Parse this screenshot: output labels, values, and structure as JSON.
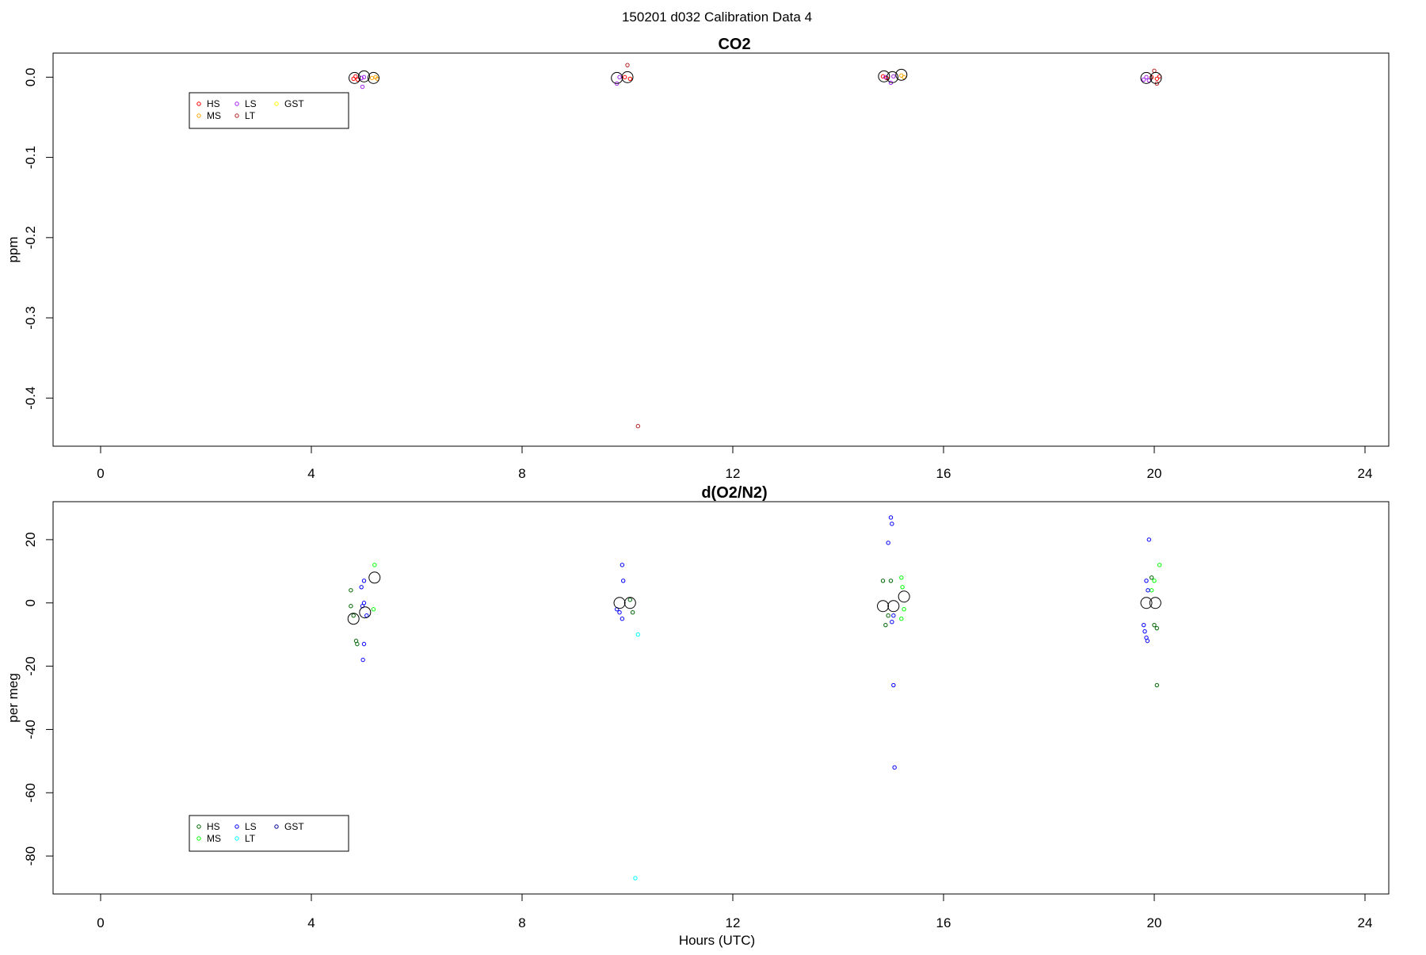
{
  "page_title": "150201   d032   Calibration Data 4",
  "chart_data": [
    {
      "type": "scatter",
      "title": "CO2",
      "xlabel": "",
      "ylabel": "ppm",
      "xlim": [
        0,
        24
      ],
      "ylim": [
        -0.46,
        0.03
      ],
      "xticks": [
        0,
        4,
        8,
        12,
        16,
        20,
        24
      ],
      "xtick_labels": [
        "0",
        "4",
        "8",
        "12",
        "16",
        "20",
        "24"
      ],
      "yticks": [
        0.0,
        -0.1,
        -0.2,
        -0.3,
        -0.4
      ],
      "ytick_labels": [
        "0.0",
        "-0.1",
        "-0.2",
        "-0.3",
        "-0.4"
      ],
      "legend": {
        "position": "top-left",
        "entries": [
          {
            "name": "HS",
            "color": "#ff0000"
          },
          {
            "name": "MS",
            "color": "#ffa500"
          },
          {
            "name": "LS",
            "color": "#a020f0"
          },
          {
            "name": "LT",
            "color": "#b22222"
          },
          {
            "name": "GST",
            "color": "#ffff00"
          }
        ]
      },
      "series": [
        {
          "name": "HS",
          "color": "#ff0000",
          "points": [
            [
              4.8,
              -0.002
            ],
            [
              4.84,
              0.001
            ],
            [
              4.88,
              -0.003
            ],
            [
              9.95,
              0.0
            ],
            [
              10.05,
              -0.002
            ],
            [
              14.85,
              0.001
            ],
            [
              14.92,
              -0.001
            ],
            [
              19.95,
              0.0
            ],
            [
              20.05,
              -0.002
            ],
            [
              20.1,
              0.001
            ]
          ]
        },
        {
          "name": "MS",
          "color": "#ffa500",
          "points": [
            [
              5.15,
              -0.001
            ],
            [
              5.22,
              0.0
            ],
            [
              5.25,
              -0.002
            ],
            [
              15.2,
              0.002
            ],
            [
              15.25,
              0.0
            ]
          ]
        },
        {
          "name": "LS",
          "color": "#a020f0",
          "points": [
            [
              4.95,
              -0.001
            ],
            [
              5.0,
              0.0
            ],
            [
              4.97,
              -0.012
            ],
            [
              9.8,
              -0.008
            ],
            [
              9.85,
              0.0
            ],
            [
              14.9,
              0.0
            ],
            [
              15.0,
              -0.007
            ],
            [
              15.05,
              0.001
            ],
            [
              19.8,
              -0.003
            ],
            [
              19.85,
              0.0
            ],
            [
              19.9,
              -0.004
            ]
          ]
        },
        {
          "name": "LT",
          "color": "#b22222",
          "points": [
            [
              10.0,
              0.015
            ],
            [
              10.2,
              -0.435
            ],
            [
              20.0,
              0.008
            ],
            [
              20.05,
              -0.008
            ]
          ]
        },
        {
          "name": "GST",
          "color": "#ffff00",
          "points": []
        },
        {
          "name": "means",
          "color": "#000000",
          "marker": "large-circle",
          "points": [
            [
              4.82,
              -0.001
            ],
            [
              5.0,
              0.001
            ],
            [
              5.18,
              -0.001
            ],
            [
              9.8,
              -0.001
            ],
            [
              10.0,
              0.0
            ],
            [
              14.87,
              0.001
            ],
            [
              15.03,
              0.0
            ],
            [
              15.2,
              0.003
            ],
            [
              19.85,
              -0.001
            ],
            [
              20.03,
              -0.001
            ]
          ]
        }
      ]
    },
    {
      "type": "scatter",
      "title": "d(O2/N2)",
      "xlabel": "Hours (UTC)",
      "ylabel": "per meg",
      "xlim": [
        0,
        24
      ],
      "ylim": [
        -92,
        32
      ],
      "xticks": [
        0,
        4,
        8,
        12,
        16,
        20,
        24
      ],
      "xtick_labels": [
        "0",
        "4",
        "8",
        "12",
        "16",
        "20",
        "24"
      ],
      "yticks": [
        20,
        0,
        -20,
        -40,
        -60,
        -80
      ],
      "ytick_labels": [
        "20",
        "0",
        "-20",
        "-40",
        "-60",
        "-80"
      ],
      "legend": {
        "position": "bottom-left",
        "entries": [
          {
            "name": "HS",
            "color": "#006400"
          },
          {
            "name": "MS",
            "color": "#00ff00"
          },
          {
            "name": "LS",
            "color": "#0000ff"
          },
          {
            "name": "LT",
            "color": "#00ffff"
          },
          {
            "name": "GST",
            "color": "#00008b"
          }
        ]
      },
      "series": [
        {
          "name": "HS",
          "color": "#006400",
          "points": [
            [
              4.75,
              4
            ],
            [
              4.75,
              -1
            ],
            [
              4.8,
              -4
            ],
            [
              4.85,
              -12
            ],
            [
              4.87,
              -13
            ],
            [
              10.05,
              1
            ],
            [
              10.1,
              -3
            ],
            [
              14.85,
              7
            ],
            [
              14.9,
              -7
            ],
            [
              14.95,
              -4
            ],
            [
              15.0,
              7
            ],
            [
              19.95,
              8
            ],
            [
              20.0,
              -7
            ],
            [
              20.05,
              -8
            ],
            [
              20.05,
              -26
            ]
          ]
        },
        {
          "name": "MS",
          "color": "#00ff00",
          "points": [
            [
              5.2,
              12
            ],
            [
              5.18,
              -2
            ],
            [
              15.2,
              8
            ],
            [
              15.22,
              5
            ],
            [
              15.25,
              -2
            ],
            [
              15.2,
              -5
            ],
            [
              20.1,
              12
            ],
            [
              20.0,
              7
            ],
            [
              19.95,
              4
            ]
          ]
        },
        {
          "name": "LS",
          "color": "#0000ff",
          "points": [
            [
              4.95,
              5
            ],
            [
              5.0,
              7
            ],
            [
              5.0,
              0
            ],
            [
              4.97,
              -1
            ],
            [
              5.05,
              -4
            ],
            [
              5.0,
              -13
            ],
            [
              4.98,
              -18
            ],
            [
              9.9,
              12
            ],
            [
              9.92,
              7
            ],
            [
              9.8,
              -2
            ],
            [
              9.85,
              -3
            ],
            [
              9.9,
              -5
            ],
            [
              15.0,
              27
            ],
            [
              15.02,
              25
            ],
            [
              14.95,
              19
            ],
            [
              15.05,
              -4
            ],
            [
              15.02,
              -6
            ],
            [
              15.05,
              -26
            ],
            [
              15.07,
              -52
            ],
            [
              19.9,
              20
            ],
            [
              19.85,
              7
            ],
            [
              19.88,
              4
            ],
            [
              19.8,
              -7
            ],
            [
              19.82,
              -9
            ],
            [
              19.85,
              -11
            ],
            [
              19.87,
              -12
            ]
          ]
        },
        {
          "name": "LT",
          "color": "#00ffff",
          "points": [
            [
              10.2,
              -10
            ],
            [
              10.15,
              -87
            ]
          ]
        },
        {
          "name": "GST",
          "color": "#00008b",
          "points": []
        },
        {
          "name": "means",
          "color": "#000000",
          "marker": "large-circle",
          "points": [
            [
              4.8,
              -5
            ],
            [
              5.02,
              -3
            ],
            [
              5.2,
              8
            ],
            [
              9.85,
              0
            ],
            [
              10.05,
              0
            ],
            [
              14.85,
              -1
            ],
            [
              15.05,
              -1
            ],
            [
              15.25,
              2
            ],
            [
              19.85,
              0
            ],
            [
              20.02,
              0
            ]
          ]
        }
      ]
    }
  ]
}
